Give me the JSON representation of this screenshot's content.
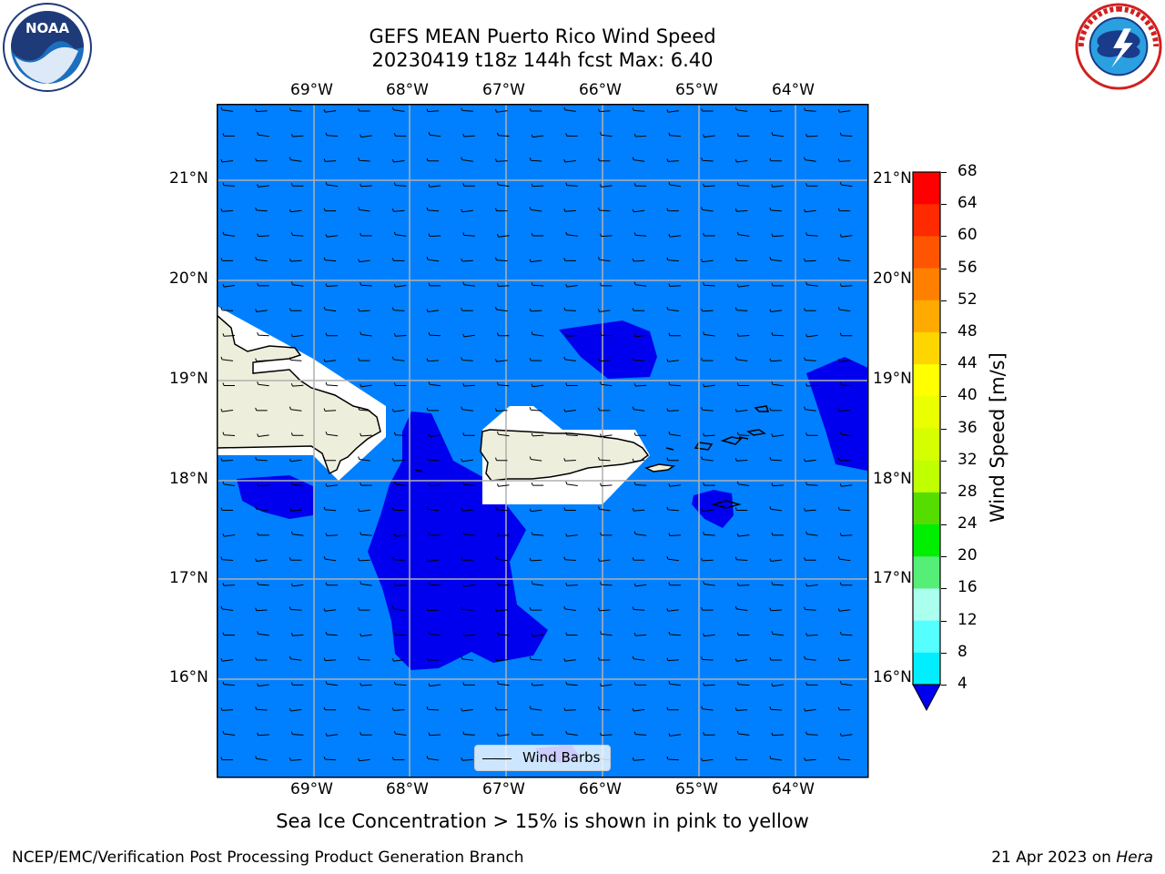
{
  "header": {
    "title_line1": "GEFS MEAN Puerto Rico Wind Speed",
    "title_line2": "20230419 t18z 144h fcst   Max: 6.40"
  },
  "logos": {
    "left": {
      "name": "noaa-logo",
      "text": "NOAA"
    },
    "right": {
      "name": "nws-logo",
      "text": "NATIONAL WEATHER SERVICE"
    }
  },
  "map": {
    "lon_labels": [
      "69°W",
      "68°W",
      "67°W",
      "66°W",
      "65°W",
      "64°W"
    ],
    "lat_labels": [
      "21°N",
      "20°N",
      "19°N",
      "18°N",
      "17°N",
      "16°N"
    ],
    "ocean_color": "#0080ff",
    "low_wind_color": "#0000ee",
    "land_color": "#eeeedc",
    "gridline_color": "#b0b0b0",
    "wind_direction": "easterly"
  },
  "colorbar": {
    "label": "Wind Speed [m/s]",
    "ticks": [
      "68",
      "64",
      "60",
      "56",
      "52",
      "48",
      "44",
      "40",
      "36",
      "32",
      "28",
      "24",
      "20",
      "16",
      "12",
      "8",
      "4"
    ],
    "colors": [
      "#ff0000",
      "#ff2a00",
      "#ff5500",
      "#ff8000",
      "#ffaa00",
      "#ffd500",
      "#ffff00",
      "#eaff00",
      "#d5ff00",
      "#bfff00",
      "#55dd00",
      "#00ee00",
      "#55ee77",
      "#aaffee",
      "#55ffff",
      "#00eeff",
      "#0080ff"
    ],
    "under_color": "#0000ee"
  },
  "legend": {
    "label": "Wind Barbs"
  },
  "footer": {
    "note": "Sea Ice Concentration > 15% is shown in pink to yellow",
    "credit_left": "NCEP/EMC/Verification Post Processing Product Generation Branch",
    "credit_right_prefix": "21 Apr 2023 on ",
    "credit_right_machine": "Hera"
  }
}
